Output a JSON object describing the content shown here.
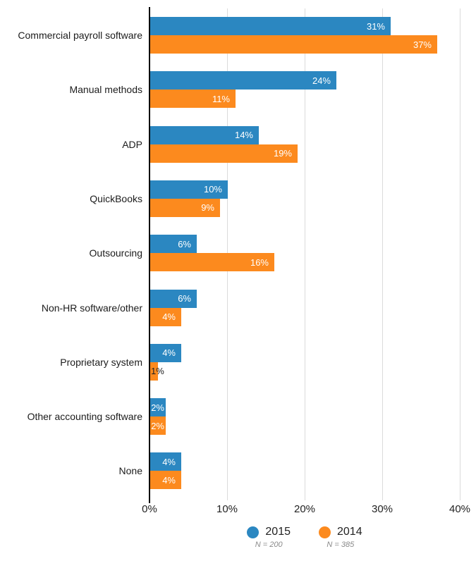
{
  "chart_data": {
    "type": "bar",
    "orientation": "horizontal",
    "title": "",
    "categories": [
      "Commercial payroll software",
      "Manual methods",
      "ADP",
      "QuickBooks",
      "Outsourcing",
      "Non-HR software/other",
      "Proprietary system",
      "Other accounting software",
      "None"
    ],
    "series": [
      {
        "name": "2015",
        "sample_size": "N = 200",
        "color": "#2B87C1",
        "values": [
          31,
          24,
          14,
          10,
          6,
          6,
          4,
          2,
          4
        ],
        "labels": [
          "31%",
          "24%",
          "14%",
          "10%",
          "6%",
          "6%",
          "4%",
          "2%",
          "4%"
        ]
      },
      {
        "name": "2014",
        "sample_size": "N = 385",
        "color": "#FC8A1E",
        "values": [
          37,
          11,
          19,
          9,
          16,
          4,
          1,
          2,
          4
        ],
        "labels": [
          "37%",
          "11%",
          "19%",
          "9%",
          "16%",
          "4%",
          "1%",
          "2%",
          "4%"
        ]
      }
    ],
    "value_suffix": "%",
    "x_ticks": [
      "0%",
      "10%",
      "20%",
      "30%",
      "40%"
    ],
    "xlim": [
      0,
      40
    ],
    "grid": true,
    "legend_position": "bottom",
    "axis_color": "#000000",
    "gridline_color": "#dbdbdb",
    "value_label_color_inside": "#ffffff",
    "value_label_color_outside": "#222222"
  }
}
